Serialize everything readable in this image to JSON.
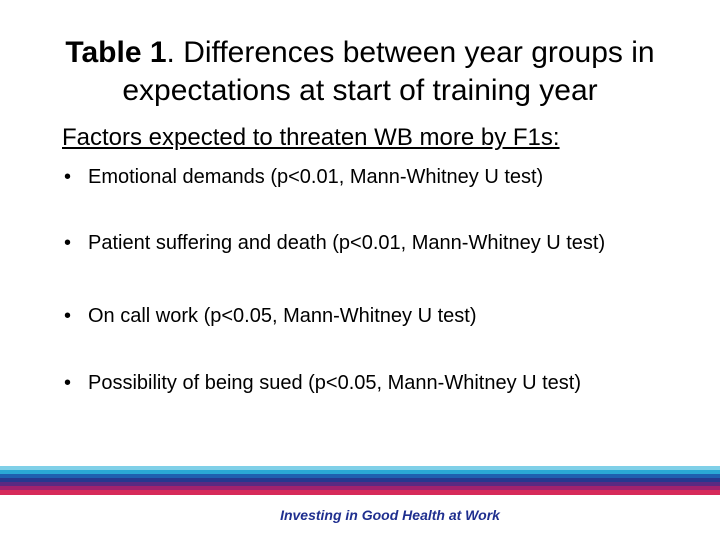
{
  "title": {
    "label": "Table 1",
    "text": ". Differences between year groups in expectations at start of training year"
  },
  "subtitle": "Factors expected to threaten WB more by F1s:",
  "bullets": [
    "Emotional demands (p<0.01, Mann-Whitney U test)",
    "Patient suffering and death (p<0.01, Mann-Whitney U test)",
    "On call work (p<0.05, Mann-Whitney U test)",
    "Possibility of being sued (p<0.05, Mann-Whitney U test)"
  ],
  "footer": "Investing in Good Health at Work"
}
